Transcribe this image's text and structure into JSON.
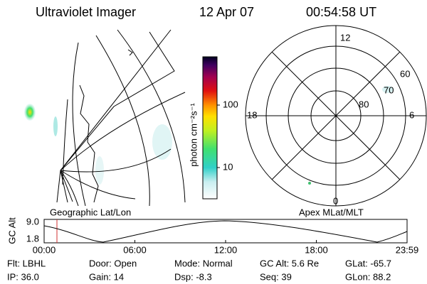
{
  "header": {
    "title": "Ultraviolet Imager",
    "date": "12 Apr 07",
    "time": "00:54:58 UT"
  },
  "colorbar": {
    "label": "photon cm⁻²s⁻¹",
    "ticks": [
      "100",
      "10"
    ]
  },
  "polar": {
    "mlt": [
      "12",
      "18",
      "6",
      "0"
    ],
    "mlat": [
      "60",
      "70",
      "80"
    ]
  },
  "panels": {
    "left": "Geographic Lat/Lon",
    "right": "Apex MLat/MLT"
  },
  "strip": {
    "label": "GC Alt",
    "ticks": [
      "9.0",
      "1.8"
    ],
    "times": [
      "00:00",
      "06:00",
      "12:00",
      "18:00",
      "23:59"
    ]
  },
  "info": [
    [
      "Flt: LBHL",
      "IP: 36.0"
    ],
    [
      "Door: Open",
      "Gain: 14"
    ],
    [
      "Mode: Normal",
      "Dsp:  -8.3"
    ],
    [
      "GC Alt: 5.6 Re",
      "Seq: 39"
    ],
    [
      "GLat: -65.7",
      "GLon: 88.2"
    ]
  ]
}
